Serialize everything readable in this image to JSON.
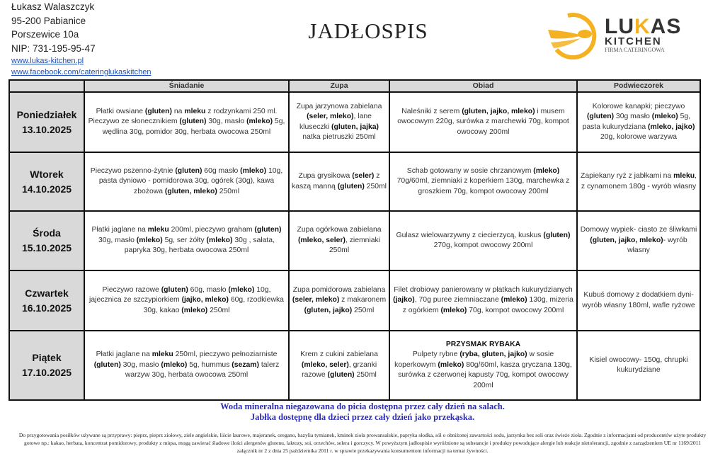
{
  "company": {
    "name": "Łukasz Walaszczyk",
    "city": "95-200 Pabianice",
    "street": "Porszewice 10a",
    "nip": "NIP: 731-195-95-47",
    "website": "www.lukas-kitchen.pl",
    "facebook": "www.facebook.com/cateringlukaskitchen"
  },
  "title": "JADŁOSPIS",
  "logo": {
    "line1": "LUKAS",
    "line2": "KITCHEN",
    "line3": "FIRMA CATERINGOWA",
    "color": "#f4b223"
  },
  "table": {
    "headers": [
      "",
      "Śniadanie",
      "Zupa",
      "Obiad",
      "Podwieczorek"
    ],
    "rows": [
      {
        "day": "Poniedziałek",
        "date": "13.10.2025",
        "cells": [
          "Płatki owsiane **(gluten)** na **mleku** z rodzynkami 250 ml. Pieczywo ze słonecznikiem **(gluten)** 30g, masło **(mleko)** 5g, wędlina 30g, pomidor 30g, herbata owocowa 250ml",
          "Zupa jarzynowa zabielana **(seler, mleko)**, lane kluseczki **(gluten, jajka)** natka pietruszki 250ml",
          "Naleśniki z serem **(gluten, jajko, mleko)** i musem owocowym 220g, surówka z marchewki 70g, kompot owocowy 200ml",
          "Kolorowe kanapki; pieczywo **(gluten)** 30g masło **(mleko)** 5g, pasta kukurydziana **(mleko, jajko)** 20g, kolorowe warzywa"
        ]
      },
      {
        "day": "Wtorek",
        "date": "14.10.2025",
        "cells": [
          "Pieczywo pszenno-żytnie **(gluten)** 60g masło **(mleko)** 10g, pasta dyniowo - pomidorowa  30g, ogórek (30g), kawa zbożowa **(gluten, mleko)** 250ml",
          "Zupa grysikowa **(seler)** z kaszą manną **(gluten)** 250ml",
          "Schab gotowany w sosie chrzanowym **(mleko)** 70g/60ml, ziemniaki z koperkiem 130g, marchewka z groszkiem 70g, kompot owocowy 200ml",
          "Zapiekany ryż z jabłkami na **mleku**, z cynamonem 180g - wyrób własny"
        ]
      },
      {
        "day": "Środa",
        "date": "15.10.2025",
        "cells": [
          "Płatki jaglane na **mleku**  200ml, pieczywo graham **(gluten)** 30g, masło **(mleko)** 5g, ser żółty **(mleko)** 30g , sałata, papryka  30g, herbata owocowa 250ml",
          "Zupa ogórkowa zabielana **(mleko, seler)**, ziemniaki 250ml",
          "Gulasz wielowarzywny z ciecierzycą, kuskus **(gluten)** 270g, kompot owocowy 200ml",
          "Domowy wypiek- ciasto ze śliwkami **(gluten, jajko, mleko)**- wyrób własny"
        ]
      },
      {
        "day": "Czwartek",
        "date": "16.10.2025",
        "cells": [
          "Pieczywo razowe **(gluten)** 60g, masło **(mleko)** 10g, jajecznica ze szczypiorkiem **(jajko, mleko)** 60g, rzodkiewka 30g, kakao **(mleko)** 250ml",
          "Zupa pomidorowa zabielana  **(seler, mleko)** z makaronem **(gluten, jajko)** 250ml",
          "Filet drobiowy panierowany w płatkach kukurydzianych **(jajko)**, 70g puree ziemniaczane **(mleko)** 130g, mizeria z ogórkiem **(mleko)** 70g, kompot owocowy 200ml",
          "Kubuś domowy z dodatkiem dyni- wyrób własny 180ml, wafle ryżowe"
        ]
      },
      {
        "day": "Piątek",
        "date": "17.10.2025",
        "cells": [
          "Płatki jaglane na **mleku** 250ml, pieczywo pełnoziarniste **(gluten)** 30g, masło **(mleko)** 5g, hummus **(sezam)** talerz warzyw 30g, herbata owocowa 250ml",
          "Krem z cukini zabielana **(mleko, seler)**, grzanki razowe **(gluten)**  250ml",
          "**PRZYSMAK RYBAKA**\nPulpety rybne **(ryba, gluten, jajko)** w sosie koperkowym **(mleko)** 80g/60ml, kasza gryczana 130g, surówka z czerwonej kapusty 70g, kompot owocowy 200ml",
          "Kisiel owocowy- 150g, chrupki kukurydziane"
        ]
      }
    ]
  },
  "notes": [
    "Woda mineralna niegazowana do picia dostępna przez cały dzień na salach.",
    "Jabłka dostępnę dla dzieci przez cały dzień jako przekąska."
  ],
  "legal": "Do przygotowania posiłków używane są przyprawy: pieprz, pieprz ziołowy, ziele angielskie, liście laurowe, majeranek, oregano, bazylia tymianek, kminek zioła prowansalskie, papryka słodka, sól o obniżonej zawartości sodu, jarzynka bez soli oraz świeże zioła. Zgodnie z informacjami od producentów użyte produkty gotowe np.: kakao, herbata, koncentrat pomidorowy, produkty z mięsa, mogą zawierać śladowe ilości alergenów glutenu, laktozy, soi, orzechów,    selera i gorczycy. W powyższym jadłospisie wyróżnione są substancje i produkty powodujące alergie lub reakcje nietolerancji, zgodnie z zarządzeniem UE nr 1169/2011 załącznik nr 2 z dnia 25 października 2011 r. w sprawie przekazywania konsumentom informacji na temat żywności."
}
